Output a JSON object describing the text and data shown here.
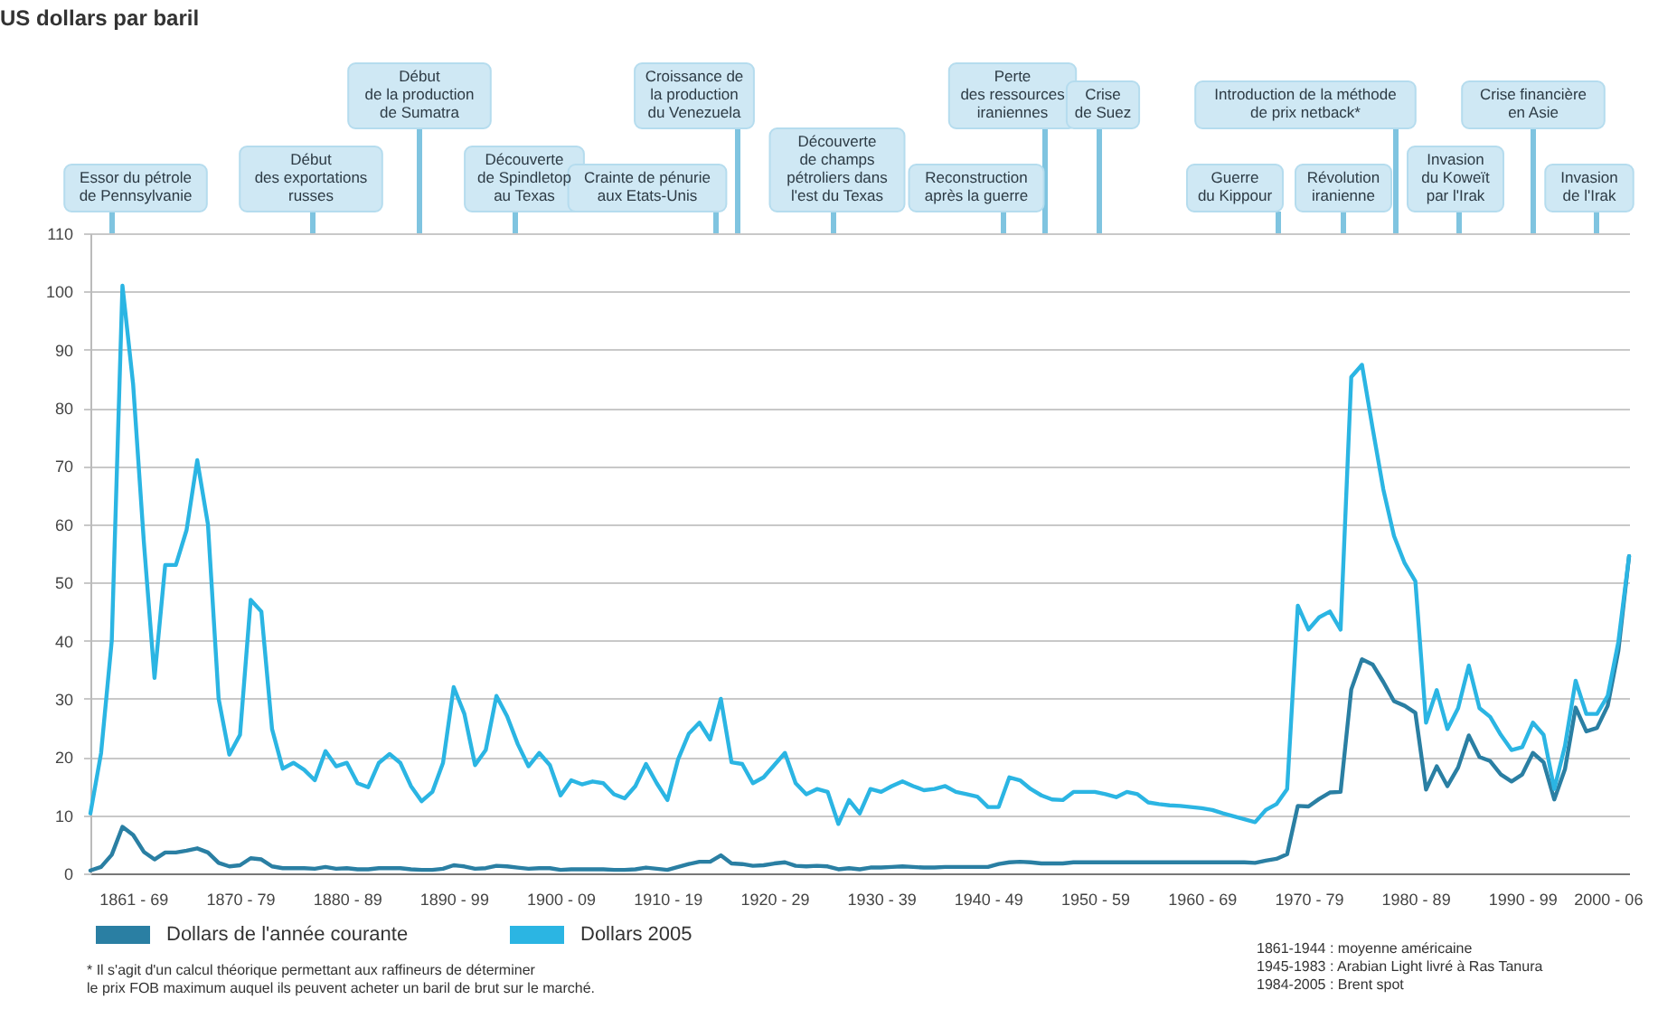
{
  "chart_data": {
    "type": "line",
    "title": "US dollars par baril",
    "ylim": [
      0,
      110
    ],
    "yticks": [
      0,
      10,
      20,
      30,
      40,
      50,
      60,
      70,
      80,
      90,
      100,
      110
    ],
    "grid": true,
    "legend": "bottom",
    "categories": [
      null,
      null,
      null,
      null,
      "1861 - 69",
      null,
      null,
      null,
      null,
      null,
      null,
      null,
      null,
      null,
      "1870 - 79",
      null,
      null,
      null,
      null,
      null,
      null,
      null,
      null,
      null,
      "1880 - 89",
      null,
      null,
      null,
      null,
      null,
      null,
      null,
      null,
      null,
      "1890 - 99",
      null,
      null,
      null,
      null,
      null,
      null,
      null,
      null,
      null,
      "1900 - 09",
      null,
      null,
      null,
      null,
      null,
      null,
      null,
      null,
      null,
      "1910 - 19",
      null,
      null,
      null,
      null,
      null,
      null,
      null,
      null,
      null,
      "1920 - 29",
      null,
      null,
      null,
      null,
      null,
      null,
      null,
      null,
      null,
      "1930 - 39",
      null,
      null,
      null,
      null,
      null,
      null,
      null,
      null,
      null,
      "1940 - 49",
      null,
      null,
      null,
      null,
      null,
      null,
      null,
      null,
      null,
      "1950 - 59",
      null,
      null,
      null,
      null,
      null,
      null,
      null,
      null,
      null,
      "1960 - 69",
      null,
      null,
      null,
      null,
      null,
      null,
      null,
      null,
      null,
      "1970 - 79",
      null,
      null,
      null,
      null,
      null,
      null,
      null,
      null,
      null,
      "1980 - 89",
      null,
      null,
      null,
      null,
      null,
      null,
      null,
      null,
      null,
      "1990 - 99",
      null,
      null,
      null,
      null,
      null,
      null,
      null,
      "2000 - 06",
      null,
      null
    ],
    "series": [
      {
        "name": "Dollars de l'année courante",
        "color": "#2a7fa3",
        "values": [
          0.5,
          1.1,
          3.2,
          8,
          6.6,
          3.7,
          2.4,
          3.6,
          3.6,
          3.9,
          4.3,
          3.6,
          1.8,
          1.2,
          1.4,
          2.6,
          2.4,
          1.2,
          0.9,
          0.9,
          0.9,
          0.8,
          1.1,
          0.8,
          0.9,
          0.7,
          0.7,
          0.9,
          0.9,
          0.9,
          0.7,
          0.6,
          0.6,
          0.8,
          1.4,
          1.2,
          0.8,
          0.9,
          1.3,
          1.2,
          1,
          0.8,
          0.9,
          0.9,
          0.6,
          0.7,
          0.7,
          0.7,
          0.7,
          0.6,
          0.6,
          0.7,
          1,
          0.8,
          0.6,
          1.1,
          1.6,
          2,
          2,
          3.1,
          1.7,
          1.6,
          1.3,
          1.4,
          1.7,
          1.9,
          1.3,
          1.2,
          1.3,
          1.2,
          0.7,
          0.9,
          0.7,
          1,
          1,
          1.1,
          1.2,
          1.1,
          1,
          1,
          1.1,
          1.1,
          1.1,
          1.1,
          1.1,
          1.6,
          1.9,
          2,
          1.9,
          1.7,
          1.7,
          1.7,
          1.9,
          1.9,
          1.9,
          1.9,
          1.9,
          1.9,
          1.9,
          1.9,
          1.9,
          1.9,
          1.9,
          1.9,
          1.9,
          1.9,
          1.9,
          1.9,
          1.9,
          1.8,
          2.2,
          2.5,
          3.3,
          11.6,
          11.5,
          12.8,
          13.9,
          14,
          31.6,
          36.8,
          35.9,
          32.9,
          29.6,
          28.8,
          27.6,
          14.4,
          18.4,
          15,
          18.2,
          23.7,
          20,
          19.3,
          17,
          15.8,
          17,
          20.7,
          19.1,
          12.7,
          17.9,
          28.5,
          24.4,
          25,
          28.8,
          38.3,
          54.5
        ]
      },
      {
        "name": "Dollars 2005",
        "color": "#2bb5e3",
        "values": [
          10.3,
          20.7,
          40,
          101,
          84,
          57,
          33.6,
          53,
          53,
          59,
          71,
          60,
          30,
          20.4,
          23.8,
          47,
          45,
          24.8,
          18,
          19,
          17.8,
          16,
          21,
          18.4,
          19,
          15.5,
          14.8,
          19,
          20.5,
          19,
          15,
          12.4,
          14,
          19,
          32,
          27.4,
          18.6,
          21.2,
          30.5,
          27,
          22.2,
          18.4,
          20.7,
          18.6,
          13.4,
          16,
          15.3,
          15.8,
          15.5,
          13.6,
          12.9,
          15,
          18.8,
          15.5,
          12.6,
          19.6,
          24,
          25.9,
          23,
          30,
          19.1,
          18.8,
          15.5,
          16.5,
          18.6,
          20.7,
          15.5,
          13.6,
          14.5,
          14,
          8.5,
          12.6,
          10.3,
          14.5,
          14,
          15,
          15.8,
          15,
          14.3,
          14.5,
          15,
          14,
          13.6,
          13.2,
          11.4,
          11.4,
          16.5,
          16,
          14.5,
          13.4,
          12.7,
          12.6,
          14,
          14,
          14,
          13.6,
          13.1,
          14,
          13.6,
          12.2,
          11.9,
          11.7,
          11.6,
          11.4,
          11.2,
          10.9,
          10.3,
          9.8,
          9.3,
          8.8,
          10.9,
          11.9,
          14.5,
          46,
          41.9,
          44,
          45,
          41.9,
          85.3,
          87.4,
          76.5,
          66,
          58,
          53.3,
          50.2,
          25.9,
          31.5,
          24.8,
          28.4,
          35.7,
          28.4,
          26.9,
          23.8,
          21.2,
          21.7,
          25.9,
          23.8,
          14.5,
          21.9,
          33.1,
          27.4,
          27.4,
          30.5,
          39.8,
          54.5
        ]
      }
    ],
    "annotations": [
      "Essor du pétrole\nde Pennsylvanie",
      "Début\ndes exportations\nrusses",
      "Début\nde la production\nde Sumatra",
      "Découverte\nde Spindletop\nau Texas",
      "Crainte de pénurie\naux Etats-Unis",
      "Croissance de\nla production\ndu Venezuela",
      "Découverte\nde champs\npétroliers dans\nl'est du Texas",
      "Reconstruction\naprès la guerre",
      "Perte\ndes ressources\niraniennes",
      "Crise\nde Suez",
      "Guerre\ndu Kippour",
      "Révolution\niranienne",
      "Introduction de la méthode\nde prix netback*",
      "Invasion\ndu Koweït\npar l'Irak",
      "Crise financière\nen Asie",
      "Invasion\nde l'Irak",
      "* Il s'agit d'un calcul théorique permettant aux raffineurs de déterminer\nle prix FOB maximum auquel ils peuvent acheter un baril de brut sur le marché.",
      "1861-1944 : moyenne américaine\n1945-1983 : Arabian Light livré à Ras Tanura\n1984-2005 : Brent spot"
    ]
  }
}
